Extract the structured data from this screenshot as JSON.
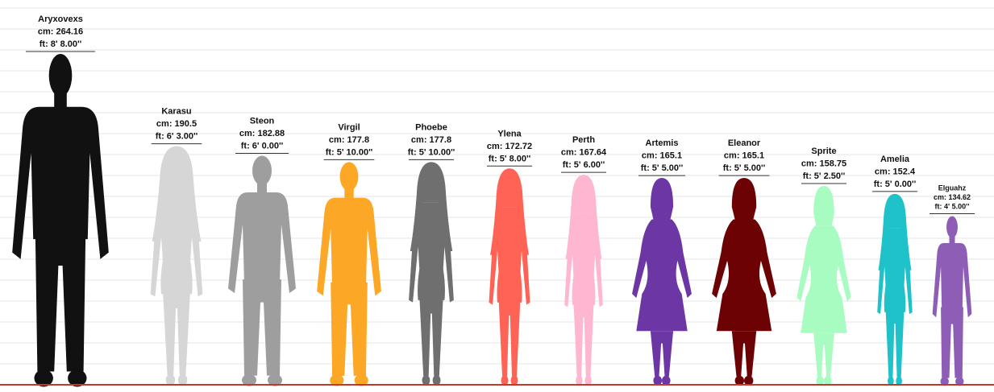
{
  "chart_data": {
    "type": "bar",
    "title": "",
    "xlabel": "",
    "ylabel": "",
    "unit_cm_label": "cm:",
    "unit_ft_label": "ft:",
    "ylim_cm": [
      0,
      275
    ],
    "grid": true,
    "baseline_color": "#c0392b",
    "characters": [
      {
        "name": "Aryxovexs",
        "cm": "264.16",
        "ft": "8' 8.00''",
        "cm_value": 264.16,
        "color": "#111111",
        "figure": "male-broad"
      },
      {
        "name": "Karasu",
        "cm": "190.5",
        "ft": "6' 3.00''",
        "cm_value": 190.5,
        "color": "#d6d6d6",
        "figure": "female-hair"
      },
      {
        "name": "Steon",
        "cm": "182.88",
        "ft": "6' 0.00''",
        "cm_value": 182.88,
        "color": "#9e9e9e",
        "figure": "male"
      },
      {
        "name": "Virgil",
        "cm": "177.8",
        "ft": "5' 10.00''",
        "cm_value": 177.8,
        "color": "#fca726",
        "figure": "male"
      },
      {
        "name": "Phoebe",
        "cm": "177.8",
        "ft": "5' 10.00''",
        "cm_value": 177.8,
        "color": "#6f6f6f",
        "figure": "female-hair"
      },
      {
        "name": "Ylena",
        "cm": "172.72",
        "ft": "5' 8.00''",
        "cm_value": 172.72,
        "color": "#ff6355",
        "figure": "female-hair"
      },
      {
        "name": "Perth",
        "cm": "167.64",
        "ft": "5' 6.00''",
        "cm_value": 167.64,
        "color": "#ffb6d0",
        "figure": "female-hair"
      },
      {
        "name": "Artemis",
        "cm": "165.1",
        "ft": "5' 5.00''",
        "cm_value": 165.1,
        "color": "#6c36a4",
        "figure": "female-dress"
      },
      {
        "name": "Eleanor",
        "cm": "165.1",
        "ft": "5' 5.00''",
        "cm_value": 165.1,
        "color": "#6d0205",
        "figure": "female-dress"
      },
      {
        "name": "Sprite",
        "cm": "158.75",
        "ft": "5' 2.50''",
        "cm_value": 158.75,
        "color": "#a8fcc2",
        "figure": "female-dress-light"
      },
      {
        "name": "Amelia",
        "cm": "152.4",
        "ft": "5' 0.00''",
        "cm_value": 152.4,
        "color": "#1ec2c8",
        "figure": "female-hair"
      },
      {
        "name": "Elguahz",
        "cm": "134.62",
        "ft": "4' 5.00''",
        "cm_value": 134.62,
        "color": "#8e5eb6",
        "figure": "child"
      }
    ]
  }
}
